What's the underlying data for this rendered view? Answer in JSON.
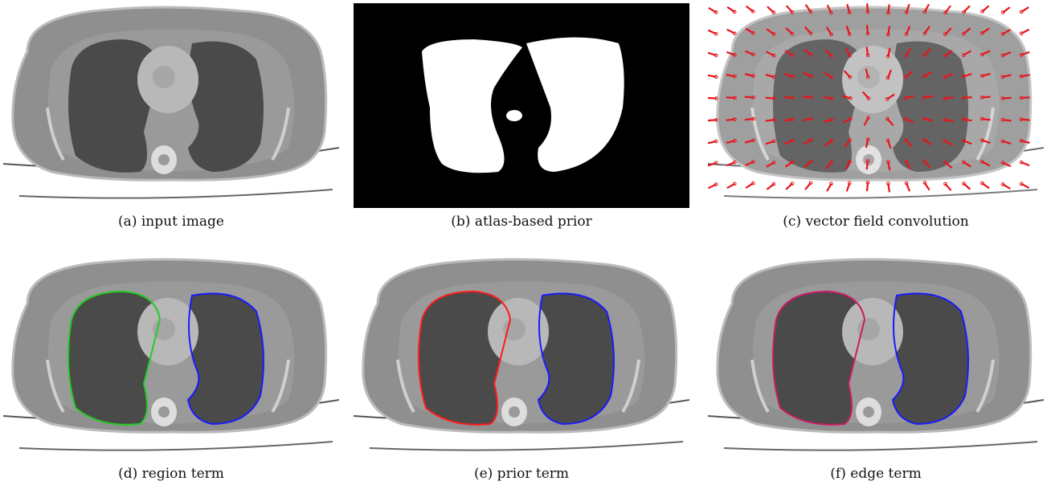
{
  "figure": {
    "panels": [
      {
        "id": "a",
        "caption": "(a) input image",
        "kind": "ct"
      },
      {
        "id": "b",
        "caption": "(b) atlas-based prior",
        "kind": "mask"
      },
      {
        "id": "c",
        "caption": "(c) vector field convolution",
        "kind": "vfc",
        "arrow_color": "#e8141a"
      },
      {
        "id": "d",
        "caption": "(d) region term",
        "kind": "contour",
        "colors": [
          "#1a1aff",
          "#22cc22"
        ]
      },
      {
        "id": "e",
        "caption": "(e) prior term",
        "kind": "contour",
        "colors": [
          "#1a1aff",
          "#ff1a1a"
        ]
      },
      {
        "id": "f",
        "caption": "(f) edge term",
        "kind": "contour",
        "colors": [
          "#1a1aff",
          "#cc1a66"
        ]
      }
    ]
  }
}
